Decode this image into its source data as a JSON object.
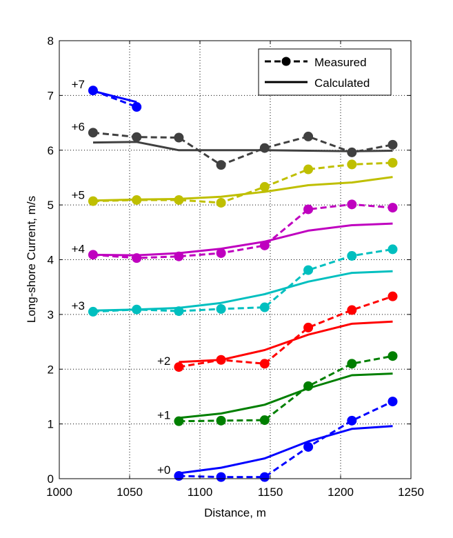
{
  "chart_data": {
    "type": "line",
    "xlabel": "Distance, m",
    "ylabel": "Long-shore Current, m/s",
    "xlim": [
      1000,
      1250
    ],
    "ylim": [
      0,
      8
    ],
    "xticks": [
      "1000",
      "1050",
      "1100",
      "1150",
      "1200",
      "1250"
    ],
    "yticks": [
      "0",
      "1",
      "2",
      "3",
      "4",
      "5",
      "6",
      "7",
      "8"
    ],
    "grid": true,
    "legend": {
      "position": "top-right",
      "entries": [
        {
          "label": "Measured",
          "style": "dashed-marker"
        },
        {
          "label": "Calculated",
          "style": "solid"
        }
      ]
    },
    "series": [
      {
        "name": "+0",
        "color": "#0000ff",
        "measured": {
          "x": [
            1085,
            1115,
            1146,
            1177,
            1208,
            1237
          ],
          "y": [
            0.05,
            0.03,
            0.03,
            0.58,
            1.06,
            1.41
          ]
        },
        "calculated": {
          "x": [
            1085,
            1115,
            1146,
            1177,
            1208,
            1237
          ],
          "y": [
            0.1,
            0.2,
            0.37,
            0.68,
            0.91,
            0.96
          ]
        }
      },
      {
        "name": "+1",
        "color": "#007f00",
        "measured": {
          "x": [
            1085,
            1115,
            1146,
            1177,
            1208,
            1237
          ],
          "y": [
            1.05,
            1.06,
            1.07,
            1.69,
            2.1,
            2.24
          ]
        },
        "calculated": {
          "x": [
            1085,
            1115,
            1146,
            1177,
            1208,
            1237
          ],
          "y": [
            1.11,
            1.19,
            1.35,
            1.65,
            1.89,
            1.92
          ]
        }
      },
      {
        "name": "+2",
        "color": "#ff0000",
        "measured": {
          "x": [
            1085,
            1115,
            1146,
            1177,
            1208,
            1237
          ],
          "y": [
            2.04,
            2.17,
            2.1,
            2.76,
            3.08,
            3.33
          ]
        },
        "calculated": {
          "x": [
            1085,
            1115,
            1146,
            1177,
            1208,
            1237
          ],
          "y": [
            2.13,
            2.17,
            2.35,
            2.63,
            2.83,
            2.87
          ]
        }
      },
      {
        "name": "+3",
        "color": "#00bfbf",
        "measured": {
          "x": [
            1024,
            1055,
            1085,
            1115,
            1146,
            1177,
            1208,
            1237
          ],
          "y": [
            3.05,
            3.09,
            3.06,
            3.1,
            3.13,
            3.81,
            4.07,
            4.19
          ]
        },
        "calculated": {
          "x": [
            1024,
            1055,
            1085,
            1115,
            1146,
            1177,
            1208,
            1237
          ],
          "y": [
            3.07,
            3.09,
            3.12,
            3.21,
            3.37,
            3.6,
            3.76,
            3.79
          ]
        }
      },
      {
        "name": "+4",
        "color": "#bf00bf",
        "measured": {
          "x": [
            1024,
            1055,
            1085,
            1115,
            1146,
            1177,
            1208,
            1237
          ],
          "y": [
            4.09,
            4.03,
            4.06,
            4.12,
            4.26,
            4.92,
            5.01,
            4.95
          ]
        },
        "calculated": {
          "x": [
            1024,
            1055,
            1085,
            1115,
            1146,
            1177,
            1208,
            1237
          ],
          "y": [
            4.09,
            4.08,
            4.12,
            4.2,
            4.33,
            4.53,
            4.63,
            4.66
          ]
        }
      },
      {
        "name": "+5",
        "color": "#bfbf00",
        "measured": {
          "x": [
            1024,
            1055,
            1085,
            1115,
            1146,
            1177,
            1208,
            1237
          ],
          "y": [
            5.07,
            5.09,
            5.09,
            5.04,
            5.33,
            5.65,
            5.74,
            5.77
          ]
        },
        "calculated": {
          "x": [
            1024,
            1055,
            1085,
            1115,
            1146,
            1177,
            1208,
            1237
          ],
          "y": [
            5.08,
            5.1,
            5.11,
            5.15,
            5.24,
            5.36,
            5.41,
            5.51
          ]
        }
      },
      {
        "name": "+6",
        "color": "#404040",
        "measured": {
          "x": [
            1024,
            1055,
            1085,
            1115,
            1146,
            1177,
            1208,
            1237
          ],
          "y": [
            6.32,
            6.24,
            6.23,
            5.73,
            6.04,
            6.25,
            5.96,
            6.1
          ]
        },
        "calculated": {
          "x": [
            1024,
            1055,
            1085,
            1115,
            1146,
            1177,
            1208,
            1237
          ],
          "y": [
            6.14,
            6.15,
            6.0,
            6.0,
            6.0,
            5.99,
            5.98,
            5.99
          ]
        }
      },
      {
        "name": "+7",
        "color": "#0000ff",
        "measured": {
          "x": [
            1024,
            1055
          ],
          "y": [
            7.09,
            6.79
          ]
        },
        "calculated": {
          "x": [
            1024,
            1055
          ],
          "y": [
            7.08,
            6.88
          ]
        }
      }
    ]
  }
}
